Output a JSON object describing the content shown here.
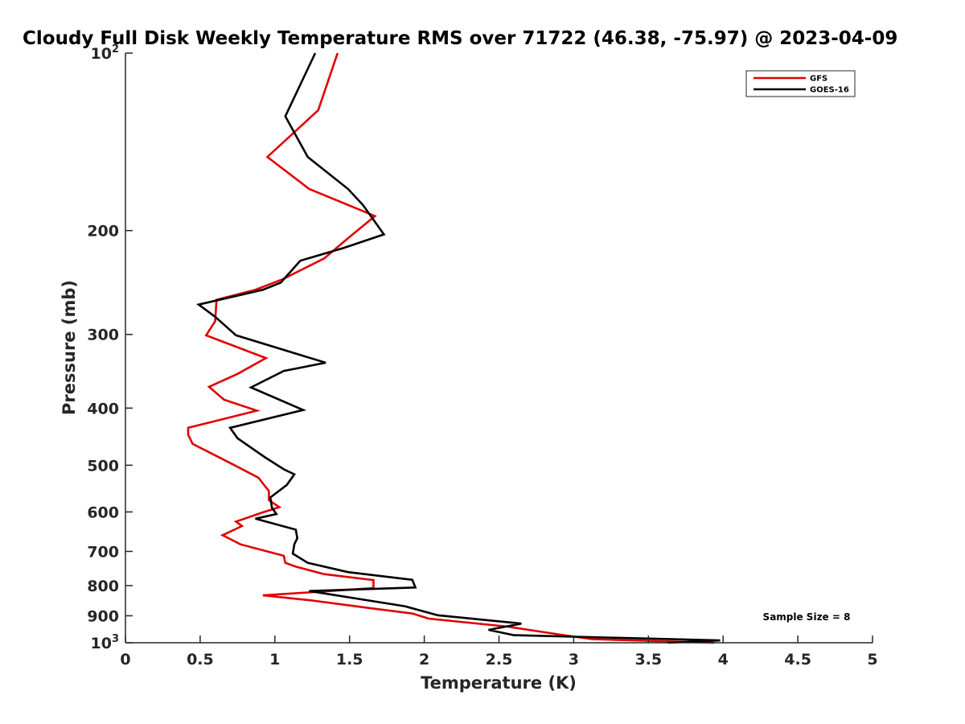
{
  "chart_data": {
    "type": "line",
    "title": "Cloudy Full Disk Weekly Temperature RMS over 71722 (46.38, -75.97) @ 2023-04-09",
    "xlabel": "Temperature (K)",
    "ylabel": "Pressure (mb)",
    "xlim": [
      0,
      5
    ],
    "ylim": [
      100,
      1000
    ],
    "y_scale": "log",
    "y_reversed": true,
    "x_ticks": [
      "0",
      "0.5",
      "1",
      "1.5",
      "2",
      "2.5",
      "3",
      "3.5",
      "4",
      "4.5",
      "5"
    ],
    "y_ticks": [
      {
        "value": 100,
        "base": "10",
        "exp": "2"
      },
      {
        "value": 200,
        "label": "200"
      },
      {
        "value": 300,
        "label": "300"
      },
      {
        "value": 400,
        "label": "400"
      },
      {
        "value": 500,
        "label": "500"
      },
      {
        "value": 600,
        "label": "600"
      },
      {
        "value": 700,
        "label": "700"
      },
      {
        "value": 800,
        "label": "800"
      },
      {
        "value": 900,
        "label": "900"
      },
      {
        "value": 1000,
        "base": "10",
        "exp": "3"
      }
    ],
    "legend_position": "top-right",
    "annotation": "Sample Size = 8",
    "series": [
      {
        "name": "GFS",
        "color": "#e00000",
        "points": [
          [
            1.42,
            100
          ],
          [
            1.29,
            125
          ],
          [
            0.95,
            150
          ],
          [
            1.23,
            170
          ],
          [
            1.67,
            189
          ],
          [
            1.49,
            206
          ],
          [
            1.33,
            223
          ],
          [
            1.05,
            242
          ],
          [
            0.87,
            252
          ],
          [
            0.61,
            262
          ],
          [
            0.6,
            285
          ],
          [
            0.54,
            301
          ],
          [
            0.94,
            329
          ],
          [
            0.75,
            350
          ],
          [
            0.56,
            368
          ],
          [
            0.66,
            387
          ],
          [
            0.88,
            404
          ],
          [
            0.42,
            432
          ],
          [
            0.42,
            444
          ],
          [
            0.45,
            460
          ],
          [
            0.73,
            500
          ],
          [
            0.89,
            525
          ],
          [
            0.96,
            553
          ],
          [
            0.96,
            573
          ],
          [
            1.03,
            589
          ],
          [
            0.92,
            601
          ],
          [
            0.74,
            623
          ],
          [
            0.78,
            634
          ],
          [
            0.65,
            657
          ],
          [
            0.77,
            681
          ],
          [
            1.06,
            712
          ],
          [
            1.07,
            732
          ],
          [
            1.14,
            743
          ],
          [
            1.33,
            765
          ],
          [
            1.66,
            783
          ],
          [
            1.66,
            808
          ],
          [
            0.92,
            831
          ],
          [
            1.25,
            848
          ],
          [
            1.64,
            874
          ],
          [
            1.92,
            892
          ],
          [
            2.03,
            910
          ],
          [
            2.56,
            939
          ],
          [
            2.9,
            968
          ],
          [
            3.12,
            986
          ],
          [
            3.94,
            1000
          ]
        ]
      },
      {
        "name": "GOES-16",
        "color": "#000000",
        "points": [
          [
            1.27,
            100
          ],
          [
            1.07,
            128
          ],
          [
            1.22,
            150
          ],
          [
            1.49,
            170
          ],
          [
            1.59,
            181
          ],
          [
            1.73,
            203
          ],
          [
            1.46,
            214
          ],
          [
            1.17,
            225
          ],
          [
            1.04,
            245
          ],
          [
            0.92,
            252
          ],
          [
            0.49,
            267
          ],
          [
            0.6,
            280
          ],
          [
            0.74,
            301
          ],
          [
            1.34,
            335
          ],
          [
            1.06,
            346
          ],
          [
            0.84,
            369
          ],
          [
            1.19,
            403
          ],
          [
            0.7,
            432
          ],
          [
            0.75,
            450
          ],
          [
            0.93,
            484
          ],
          [
            1.06,
            508
          ],
          [
            1.13,
            518
          ],
          [
            1.08,
            540
          ],
          [
            0.97,
            567
          ],
          [
            0.98,
            590
          ],
          [
            1.01,
            605
          ],
          [
            0.87,
            616
          ],
          [
            1.14,
            643
          ],
          [
            1.15,
            665
          ],
          [
            1.13,
            681
          ],
          [
            1.12,
            706
          ],
          [
            1.22,
            732
          ],
          [
            1.49,
            759
          ],
          [
            1.92,
            782
          ],
          [
            1.94,
            806
          ],
          [
            1.23,
            817
          ],
          [
            1.87,
            867
          ],
          [
            2.09,
            898
          ],
          [
            2.65,
            928
          ],
          [
            2.43,
            951
          ],
          [
            2.6,
            971
          ],
          [
            3.98,
            991
          ],
          [
            3.63,
            1000
          ]
        ]
      }
    ]
  }
}
